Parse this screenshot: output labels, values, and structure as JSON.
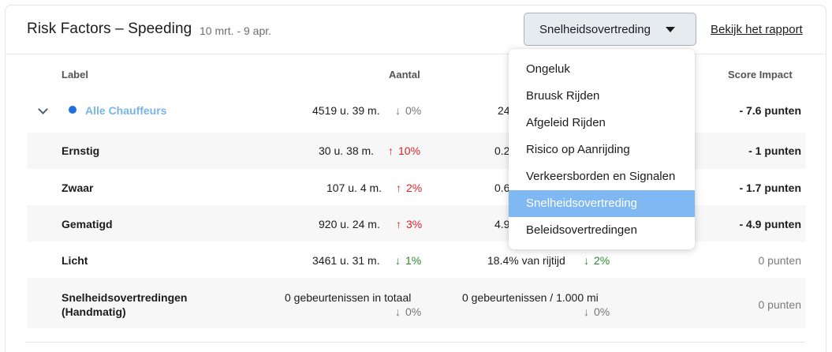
{
  "header": {
    "title": "Risk Factors – Speeding",
    "date_range": "10 mrt. - 9 apr.",
    "selected_value": "Snelheidsovertreding",
    "report_link": "Bekijk het rapport"
  },
  "columns": {
    "label": "Label",
    "count": "Aantal",
    "impact": "Score Impact"
  },
  "all_drivers": {
    "label": "Alle Chauffeurs",
    "count": "4519 u. 39 m.",
    "count_change": "0%",
    "ratio_partial": "24",
    "impact": "- 7.6 punten"
  },
  "rows": [
    {
      "label": "Ernstig",
      "count": "30 u. 38 m.",
      "count_change": "10%",
      "ratio_partial": "0.2",
      "impact": "- 1 punten"
    },
    {
      "label": "Zwaar",
      "count": "107 u. 4 m.",
      "count_change": "2%",
      "ratio_partial": "0.6",
      "impact": "- 1.7 punten"
    },
    {
      "label": "Gematigd",
      "count": "920 u. 24 m.",
      "count_change": "3%",
      "ratio_partial": "4.9",
      "impact": "- 4.9 punten"
    },
    {
      "label": "Licht",
      "count": "3461 u. 31 m.",
      "count_change": "1%",
      "ratio": "18.4% van rijtijd",
      "ratio_change": "2%",
      "impact": "0 punten"
    }
  ],
  "manual": {
    "label_line1": "Snelheidsovertredingen",
    "label_line2": "(Handmatig)",
    "count": "0 gebeurtenissen in totaal",
    "count_change": "0%",
    "ratio": "0 gebeurtenissen / 1.000 mi",
    "ratio_change": "0%",
    "impact": "0 punten"
  },
  "dropdown": {
    "options": [
      "Ongeluk",
      "Bruusk Rijden",
      "Afgeleid Rijden",
      "Risico op Aanrijding",
      "Verkeersborden en Signalen",
      "Snelheidsovertreding",
      "Beleidsovertredingen"
    ],
    "selected_index": 5
  },
  "icons": {
    "arrow_up": "↑",
    "arrow_down": "↓",
    "chevron": "chevron-down-icon",
    "caret": "caret-down-icon"
  },
  "colors": {
    "accent_dot": "#1f6fdc",
    "up": "#d8232a",
    "down": "#2a8a2a",
    "selected_bg": "#7fb8f2"
  }
}
